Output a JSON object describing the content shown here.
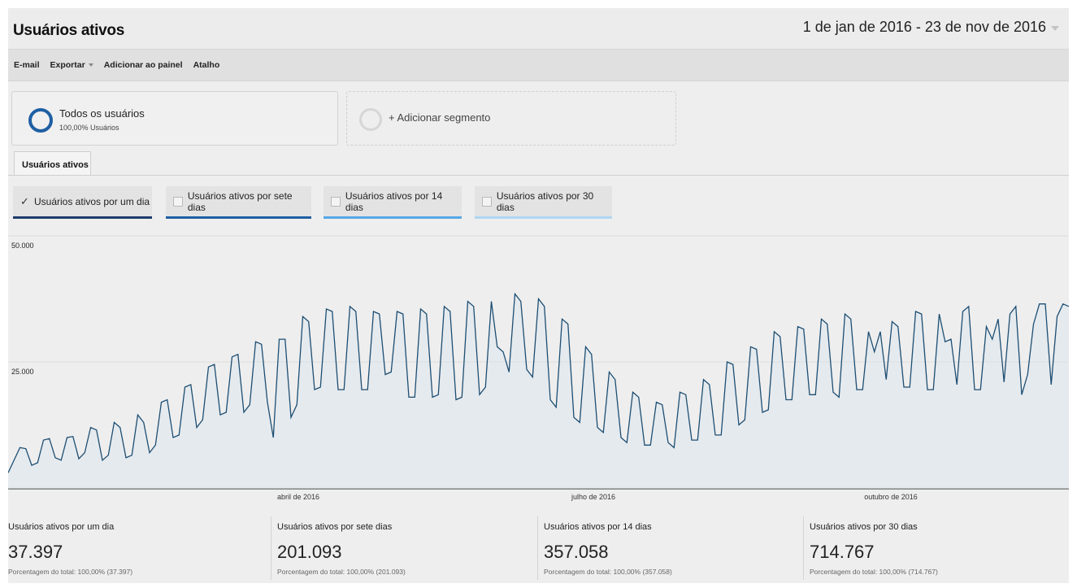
{
  "header": {
    "title": "Usuários ativos",
    "date_range": "1 de jan de 2016 - 23 de nov de 2016"
  },
  "toolbar": {
    "email": "E-mail",
    "export": "Exportar",
    "add_to_dashboard": "Adicionar ao painel",
    "shortcut": "Atalho"
  },
  "segments": {
    "all_users": {
      "name": "Todos os usuários",
      "sub": "100,00% Usuários"
    },
    "add_segment": "+ Adicionar segmento"
  },
  "tabs": [
    {
      "label": "Usuários ativos"
    }
  ],
  "metric_selectors": [
    {
      "label": "Usuários ativos por um dia",
      "checked": true,
      "color": "#1d3c6b"
    },
    {
      "label": "Usuários ativos por sete dias",
      "checked": false,
      "color": "#1f5fa3"
    },
    {
      "label": "Usuários ativos por 14 dias",
      "checked": false,
      "color": "#56a8e6"
    },
    {
      "label": "Usuários ativos por 30 dias",
      "checked": false,
      "color": "#b0d6f2"
    }
  ],
  "chart_data": {
    "type": "line",
    "y_ticks": [
      "50.000",
      "25.000"
    ],
    "ylim": [
      0,
      50000
    ],
    "x_labels": [
      "abril de 2016",
      "julho de 2016",
      "outubro de 2016"
    ],
    "line_color": "#1d4e73",
    "series": [
      {
        "values": [
          3000,
          5500,
          8000,
          7800,
          4500,
          5000,
          9500,
          9800,
          6000,
          5500,
          10000,
          10200,
          5800,
          7000,
          12000,
          11500,
          5500,
          6500,
          13000,
          12000,
          6000,
          6500,
          14500,
          13000,
          7000,
          8500,
          17000,
          17500,
          10000,
          10500,
          20000,
          20500,
          12000,
          13500,
          24000,
          24500,
          14500,
          15000,
          26000,
          26500,
          15000,
          16500,
          29000,
          28500,
          17000,
          10000,
          29500,
          29500,
          14000,
          16500,
          34000,
          33000,
          19500,
          20000,
          35500,
          35000,
          19500,
          19500,
          36000,
          35000,
          19500,
          19500,
          35000,
          34500,
          22500,
          23000,
          35000,
          34500,
          18000,
          18000,
          35500,
          34500,
          18000,
          18500,
          36000,
          35000,
          17500,
          18000,
          37000,
          36000,
          18500,
          20000,
          37000,
          28000,
          27000,
          23000,
          38500,
          37000,
          23500,
          22000,
          37500,
          36000,
          17500,
          16000,
          33500,
          32500,
          14000,
          13000,
          28000,
          26500,
          12000,
          11000,
          23000,
          21500,
          10000,
          9000,
          19000,
          18000,
          8500,
          8500,
          17000,
          16500,
          9000,
          8000,
          19000,
          18500,
          9500,
          9500,
          21500,
          20500,
          10500,
          10500,
          25000,
          24500,
          12500,
          13500,
          28000,
          27500,
          15000,
          15500,
          31000,
          30000,
          17500,
          17500,
          32000,
          31500,
          18500,
          18500,
          33500,
          32500,
          19000,
          18000,
          34500,
          33500,
          19500,
          19500,
          31000,
          27000,
          31000,
          21500,
          33000,
          32000,
          20000,
          20000,
          35000,
          34500,
          19500,
          19500,
          34500,
          29000,
          29500,
          20500,
          35000,
          36000,
          19500,
          19500,
          32000,
          29500,
          33500,
          21000,
          34500,
          36000,
          18500,
          22500,
          32500,
          36500,
          36500,
          20500,
          34000,
          36500,
          36000
        ]
      }
    ]
  },
  "summary": [
    {
      "title": "Usuários ativos por um dia",
      "value": "37.397",
      "pct": "Porcentagem do total: 100,00% (37.397)"
    },
    {
      "title": "Usuários ativos por sete dias",
      "value": "201.093",
      "pct": "Porcentagem do total: 100,00% (201.093)"
    },
    {
      "title": "Usuários ativos por 14 dias",
      "value": "357.058",
      "pct": "Porcentagem do total: 100,00% (357.058)"
    },
    {
      "title": "Usuários ativos por 30 dias",
      "value": "714.767",
      "pct": "Porcentagem do total: 100,00% (714.767)"
    }
  ]
}
